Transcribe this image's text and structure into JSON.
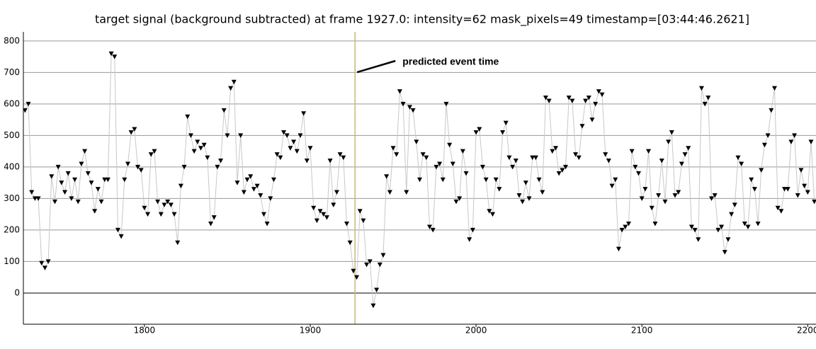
{
  "chart_data": {
    "type": "line",
    "title": "target signal (background subtracted) at frame 1927.0: intensity=62 mask_pixels=49 timestamp=[03:44:46.2621]",
    "x": [
      1728,
      1730,
      1732,
      1734,
      1736,
      1738,
      1740,
      1742,
      1744,
      1746,
      1748,
      1750,
      1752,
      1754,
      1756,
      1758,
      1760,
      1762,
      1764,
      1766,
      1768,
      1770,
      1772,
      1774,
      1776,
      1778,
      1780,
      1782,
      1784,
      1786,
      1788,
      1790,
      1792,
      1794,
      1796,
      1798,
      1800,
      1802,
      1804,
      1806,
      1808,
      1810,
      1812,
      1814,
      1816,
      1818,
      1820,
      1822,
      1824,
      1826,
      1828,
      1830,
      1832,
      1834,
      1836,
      1838,
      1840,
      1842,
      1844,
      1846,
      1848,
      1850,
      1852,
      1854,
      1856,
      1858,
      1860,
      1862,
      1864,
      1866,
      1868,
      1870,
      1872,
      1874,
      1876,
      1878,
      1880,
      1882,
      1884,
      1886,
      1888,
      1890,
      1892,
      1894,
      1896,
      1898,
      1900,
      1902,
      1904,
      1906,
      1908,
      1910,
      1912,
      1914,
      1916,
      1918,
      1920,
      1922,
      1924,
      1926,
      1928,
      1930,
      1932,
      1934,
      1936,
      1938,
      1940,
      1942,
      1944,
      1946,
      1948,
      1950,
      1952,
      1954,
      1956,
      1958,
      1960,
      1962,
      1964,
      1966,
      1968,
      1970,
      1972,
      1974,
      1976,
      1978,
      1980,
      1982,
      1984,
      1986,
      1988,
      1990,
      1992,
      1994,
      1996,
      1998,
      2000,
      2002,
      2004,
      2006,
      2008,
      2010,
      2012,
      2014,
      2016,
      2018,
      2020,
      2022,
      2024,
      2026,
      2028,
      2030,
      2032,
      2034,
      2036,
      2038,
      2040,
      2042,
      2044,
      2046,
      2048,
      2050,
      2052,
      2054,
      2056,
      2058,
      2060,
      2062,
      2064,
      2066,
      2068,
      2070,
      2072,
      2074,
      2076,
      2078,
      2080,
      2082,
      2084,
      2086,
      2088,
      2090,
      2092,
      2094,
      2096,
      2098,
      2100,
      2102,
      2104,
      2106,
      2108,
      2110,
      2112,
      2114,
      2116,
      2118,
      2120,
      2122,
      2124,
      2126,
      2128,
      2130,
      2132,
      2134,
      2136,
      2138,
      2140,
      2142,
      2144,
      2146,
      2148,
      2150,
      2152,
      2154,
      2156,
      2158,
      2160,
      2162,
      2164,
      2166,
      2168,
      2170,
      2172,
      2174,
      2176,
      2178,
      2180,
      2182,
      2184,
      2186,
      2188,
      2190,
      2192,
      2194,
      2196,
      2198,
      2200,
      2202,
      2204
    ],
    "series": [
      {
        "color": "#000000",
        "values": [
          580,
          600,
          320,
          300,
          300,
          95,
          80,
          100,
          370,
          290,
          400,
          350,
          320,
          380,
          300,
          360,
          290,
          410,
          450,
          380,
          350,
          260,
          330,
          290,
          360,
          360,
          760,
          750,
          200,
          180,
          360,
          410,
          510,
          520,
          400,
          390,
          270,
          250,
          440,
          450,
          290,
          250,
          280,
          290,
          280,
          250,
          160,
          340,
          400,
          560,
          500,
          450,
          480,
          460,
          470,
          430,
          220,
          240,
          400,
          420,
          580,
          500,
          650,
          670,
          350,
          500,
          320,
          360,
          370,
          330,
          340,
          310,
          250,
          220,
          300,
          360,
          440,
          430,
          510,
          500,
          460,
          480,
          450,
          500,
          570,
          420,
          460,
          270,
          230,
          260,
          250,
          240,
          420,
          280,
          320,
          440,
          430,
          220,
          160,
          70,
          50,
          260,
          230,
          90,
          100,
          -40,
          10,
          90,
          120,
          370,
          320,
          460,
          440,
          640,
          600,
          320,
          590,
          580,
          480,
          360,
          440,
          430,
          210,
          200,
          400,
          410,
          360,
          600,
          470,
          410,
          290,
          300,
          450,
          380,
          170,
          200,
          510,
          520,
          400,
          360,
          260,
          250,
          360,
          330,
          510,
          540,
          430,
          400,
          420,
          310,
          290,
          350,
          300,
          430,
          430,
          360,
          320,
          620,
          610,
          450,
          460,
          380,
          390,
          400,
          620,
          610,
          440,
          430,
          530,
          610,
          620,
          550,
          600,
          640,
          630,
          440,
          420,
          340,
          360,
          140,
          200,
          210,
          220,
          450,
          400,
          380,
          300,
          330,
          450,
          270,
          220,
          310,
          420,
          290,
          480,
          510,
          310,
          320,
          410,
          440,
          460,
          210,
          200,
          170,
          650,
          600,
          620,
          300,
          310,
          200,
          210,
          130,
          170,
          250,
          280,
          430,
          410,
          220,
          210,
          360,
          330,
          220,
          390,
          470,
          500,
          580,
          650,
          270,
          260,
          330,
          330,
          480,
          500,
          310,
          390,
          340,
          320,
          480,
          290
        ]
      }
    ],
    "line_color": "#c8c8c8",
    "xlim": [
      1727,
      2205
    ],
    "ylim": [
      -99,
      829
    ],
    "xticks": [
      1800,
      1900,
      2000,
      2100,
      2200
    ],
    "yticks": [
      0,
      100,
      200,
      300,
      400,
      500,
      600,
      700,
      800
    ],
    "grid": true,
    "event_x": 1927,
    "annotation": "predicted event time"
  }
}
